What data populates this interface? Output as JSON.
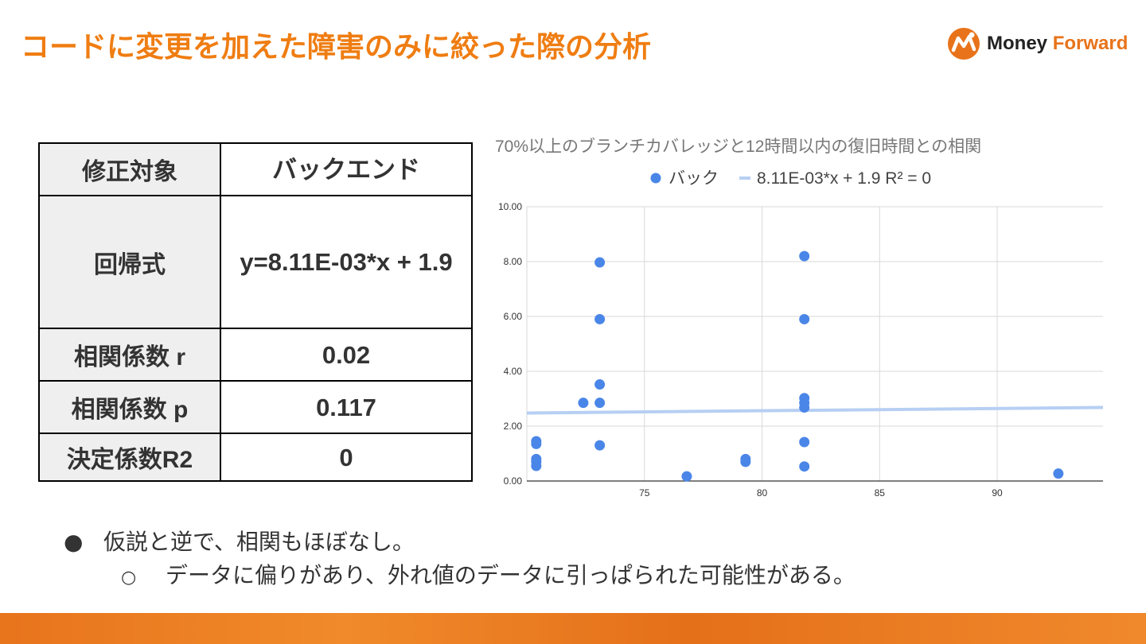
{
  "slide": {
    "title": "コードに変更を加えた障害のみに絞った際の分析",
    "logo": {
      "brand_money": "Money",
      "brand_forward": "Forward",
      "icon": "money-forward-logo-icon",
      "accent": "#e8731a"
    }
  },
  "table": {
    "rows": [
      {
        "key": "修正対象",
        "value": "バックエンド"
      },
      {
        "key": "回帰式",
        "value": "y=8.11E-03*x + 1.9"
      },
      {
        "key": "相関係数 r",
        "value": "0.02"
      },
      {
        "key": "相関係数 p",
        "value": "0.117"
      },
      {
        "key": "決定係数R2",
        "value": "0"
      }
    ]
  },
  "chart_data": {
    "type": "scatter",
    "title": "70%以上のブランチカバレッジと12時間以内の復旧時間との相関",
    "legend_position": "top",
    "series": [
      {
        "name": "バック",
        "color": "#4a86e8",
        "points": [
          [
            70.4,
            1.45
          ],
          [
            70.4,
            1.35
          ],
          [
            70.4,
            0.8
          ],
          [
            70.4,
            0.7
          ],
          [
            70.4,
            0.55
          ],
          [
            72.4,
            2.85
          ],
          [
            73.1,
            7.97
          ],
          [
            73.1,
            5.9
          ],
          [
            73.1,
            3.52
          ],
          [
            73.1,
            2.85
          ],
          [
            73.1,
            1.3
          ],
          [
            76.8,
            0.17
          ],
          [
            79.3,
            0.8
          ],
          [
            79.3,
            0.7
          ],
          [
            81.8,
            8.2
          ],
          [
            81.8,
            5.9
          ],
          [
            81.8,
            3.02
          ],
          [
            81.8,
            2.85
          ],
          [
            81.8,
            2.68
          ],
          [
            81.8,
            1.42
          ],
          [
            81.8,
            0.53
          ],
          [
            92.6,
            0.27
          ]
        ]
      }
    ],
    "trendline": {
      "name": "8.11E-03*x + 1.9 R² = 0",
      "slope": 0.00811,
      "intercept": 1.9,
      "color": "#b7cff3"
    },
    "xlim": [
      70,
      94.5
    ],
    "ylim": [
      0,
      10
    ],
    "x_ticks": [
      75,
      80,
      85,
      90
    ],
    "y_ticks": [
      0,
      2,
      4,
      6,
      8,
      10
    ],
    "y_tick_labels": [
      "0.00",
      "2.00",
      "4.00",
      "6.00",
      "8.00",
      "10.00"
    ],
    "grid": true,
    "xlabel": "",
    "ylabel": ""
  },
  "bullets": [
    {
      "marker": "●",
      "text": "仮説と逆で、相関もほぼなし。"
    },
    {
      "marker": "○",
      "text": "データに偏りがあり、外れ値のデータに引っぱられた可能性がある。"
    }
  ]
}
